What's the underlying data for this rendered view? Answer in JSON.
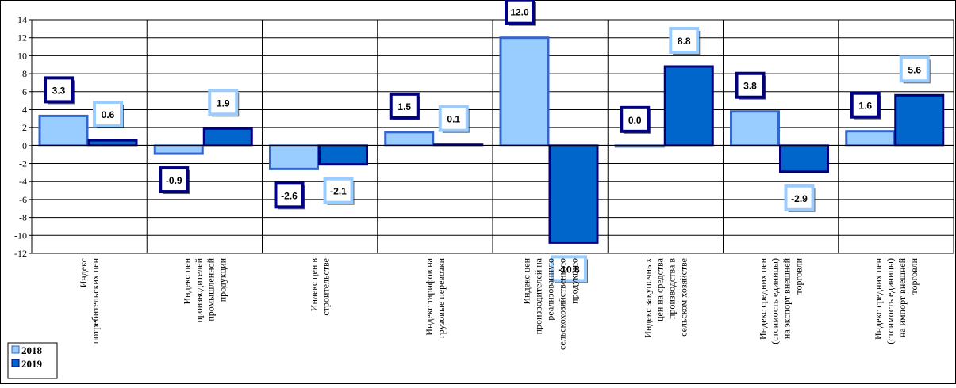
{
  "chart_data": {
    "type": "bar",
    "categories": [
      "Индекс\nпотребительских цен",
      "Индекс цен\nпроизводителей\nпромышленной\nпродукции",
      "Индекс цен в\nстроительстве",
      "Индекс тарифов на\nгрузовые перевозки",
      "Индекс цен\nпроизводителей на\nреализованную\nсельскохозяйственную\nпродукцию",
      "Индекс закупочных\nцен на средства\nпроизводства в\nсельском хозяйстве",
      "Индекс средних цен\n(стоимость единицы)\nна экспорт внешней\nторговли",
      "Индекс средних цен\n(стоимость единицы)\nна импорт внешней\nторговли"
    ],
    "series": [
      {
        "name": "2018",
        "color": "#99ccff",
        "values": [
          3.3,
          -0.9,
          -2.6,
          1.5,
          12.0,
          0.0,
          3.8,
          1.6
        ],
        "value_labels": [
          "3.3",
          "-0.9",
          "-2.6",
          "1.5",
          "12.0",
          "0.0",
          "3.8",
          "1.6"
        ]
      },
      {
        "name": "2019",
        "color": "#0066cc",
        "values": [
          0.6,
          1.9,
          -2.1,
          0.1,
          -10.8,
          8.8,
          -2.9,
          5.6
        ],
        "value_labels": [
          "0.6",
          "1.9",
          "-2.1",
          "0.1",
          "-10.8",
          "8.8",
          "-2.9",
          "5.6"
        ]
      }
    ],
    "ylim": [
      -12,
      14
    ],
    "yticks": [
      -12,
      -10,
      -8,
      -6,
      -4,
      -2,
      0,
      2,
      4,
      6,
      8,
      10,
      12,
      14
    ],
    "grid": true,
    "legend": "bottom-left"
  }
}
